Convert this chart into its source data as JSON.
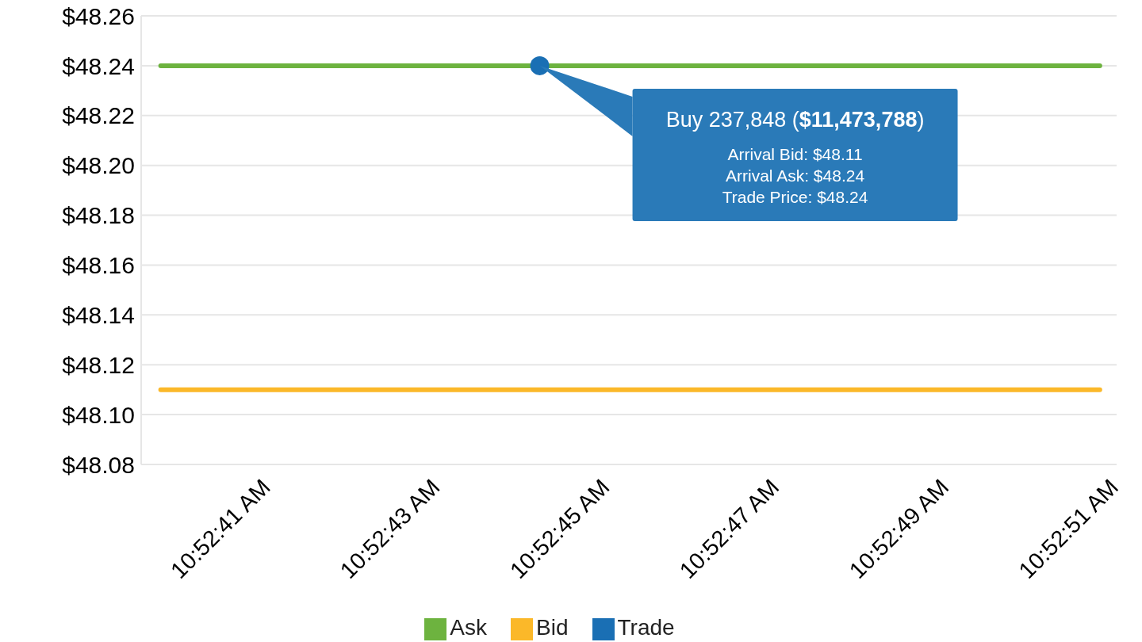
{
  "chart_data": {
    "type": "line",
    "x": [
      10.877731,
      10.880806
    ],
    "series": [
      {
        "name": "Trade",
        "type": "scatter",
        "marker": "circle",
        "color": "#1a6fb4",
        "x": [
          10.878972
        ],
        "values": [
          48.24
        ]
      },
      {
        "name": "Ask",
        "color": "#6db33f",
        "values": [
          48.24,
          48.24
        ]
      },
      {
        "name": "Bid",
        "color": "#fbb829",
        "values": [
          48.11,
          48.11
        ]
      }
    ],
    "xlim": [
      10.877667,
      10.880861
    ],
    "xticks": [
      {
        "value": 10.878056,
        "label": "10:52:41 AM"
      },
      {
        "value": 10.878611,
        "label": "10:52:43 AM"
      },
      {
        "value": 10.879167,
        "label": "10:52:45 AM"
      },
      {
        "value": 10.879722,
        "label": "10:52:47 AM"
      },
      {
        "value": 10.880278,
        "label": "10:52:49 AM"
      },
      {
        "value": 10.880833,
        "label": "10:52:51 AM"
      }
    ],
    "ylim": [
      48.08,
      48.26
    ],
    "yticks": [
      {
        "value": 48.08,
        "label": "$48.08"
      },
      {
        "value": 48.1,
        "label": "$48.10"
      },
      {
        "value": 48.12,
        "label": "$48.12"
      },
      {
        "value": 48.14,
        "label": "$48.14"
      },
      {
        "value": 48.16,
        "label": "$48.16"
      },
      {
        "value": 48.18,
        "label": "$48.18"
      },
      {
        "value": 48.2,
        "label": "$48.20"
      },
      {
        "value": 48.22,
        "label": "$48.22"
      },
      {
        "value": 48.24,
        "label": "$48.24"
      },
      {
        "value": 48.26,
        "label": "$48.26"
      }
    ],
    "grid": "y",
    "legend": "bottom",
    "line_style": "solid",
    "annotations": [
      "Buy 237,848 ($11,473,788)",
      "Arrival Bid: $48.11",
      "Arrival Ask: $48.24",
      "Trade Price: $48.24"
    ]
  }
}
